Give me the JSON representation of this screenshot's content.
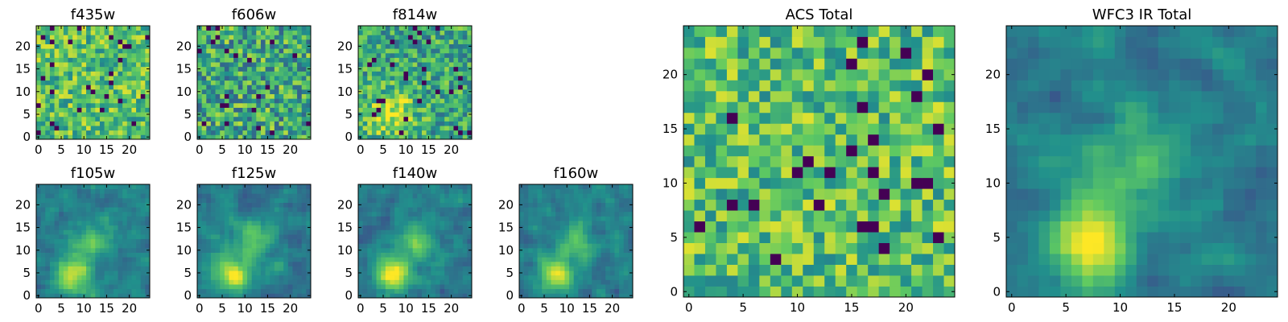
{
  "figure": {
    "description_free": true
  },
  "chart_data": [
    {
      "type": "heatmap",
      "title": "f435w",
      "grid_size": 25,
      "xticks": [
        "0",
        "5",
        "10",
        "15",
        "20"
      ],
      "yticks": [
        "0",
        "5",
        "10",
        "15",
        "20"
      ],
      "xlim": [
        0,
        25
      ],
      "ylim": [
        0,
        25
      ],
      "pattern": "noise_bright",
      "seed": 11
    },
    {
      "type": "heatmap",
      "title": "f606w",
      "grid_size": 25,
      "xticks": [
        "0",
        "5",
        "10",
        "15",
        "20"
      ],
      "yticks": [
        "0",
        "5",
        "10",
        "15",
        "20"
      ],
      "xlim": [
        0,
        25
      ],
      "ylim": [
        0,
        25
      ],
      "pattern": "noise_mid",
      "seed": 23
    },
    {
      "type": "heatmap",
      "title": "f814w",
      "grid_size": 25,
      "xticks": [
        "0",
        "5",
        "10",
        "15",
        "20"
      ],
      "yticks": [
        "0",
        "5",
        "10",
        "15",
        "20"
      ],
      "xlim": [
        0,
        25
      ],
      "ylim": [
        0,
        25
      ],
      "pattern": "noise_blob",
      "seed": 37
    },
    {
      "type": "heatmap",
      "title": "f105w",
      "grid_size": 25,
      "xticks": [
        "0",
        "5",
        "10",
        "15",
        "20"
      ],
      "yticks": [
        "0",
        "5",
        "10",
        "15",
        "20"
      ],
      "xlim": [
        0,
        25
      ],
      "ylim": [
        0,
        25
      ],
      "pattern": "smooth_source",
      "seed": 41
    },
    {
      "type": "heatmap",
      "title": "f125w",
      "grid_size": 25,
      "xticks": [
        "0",
        "5",
        "10",
        "15",
        "20"
      ],
      "yticks": [
        "0",
        "5",
        "10",
        "15",
        "20"
      ],
      "xlim": [
        0,
        25
      ],
      "ylim": [
        0,
        25
      ],
      "pattern": "smooth_source",
      "seed": 53
    },
    {
      "type": "heatmap",
      "title": "f140w",
      "grid_size": 25,
      "xticks": [
        "0",
        "5",
        "10",
        "15",
        "20"
      ],
      "yticks": [
        "0",
        "5",
        "10",
        "15",
        "20"
      ],
      "xlim": [
        0,
        25
      ],
      "ylim": [
        0,
        25
      ],
      "pattern": "smooth_source",
      "seed": 67
    },
    {
      "type": "heatmap",
      "title": "f160w",
      "grid_size": 25,
      "xticks": [
        "0",
        "5",
        "10",
        "15",
        "20"
      ],
      "yticks": [
        "0",
        "5",
        "10",
        "15",
        "20"
      ],
      "xlim": [
        0,
        25
      ],
      "ylim": [
        0,
        25
      ],
      "pattern": "smooth_source",
      "seed": 79
    },
    {
      "type": "heatmap",
      "title": "ACS Total",
      "grid_size": 25,
      "xticks": [
        "0",
        "5",
        "10",
        "15",
        "20"
      ],
      "yticks": [
        "0",
        "5",
        "10",
        "15",
        "20"
      ],
      "xlim": [
        0,
        25
      ],
      "ylim": [
        0,
        25
      ],
      "pattern": "noise_bright",
      "seed": 97
    },
    {
      "type": "heatmap",
      "title": "WFC3 IR Total",
      "grid_size": 25,
      "xticks": [
        "0",
        "5",
        "10",
        "15",
        "20"
      ],
      "yticks": [
        "0",
        "5",
        "10",
        "15",
        "20"
      ],
      "xlim": [
        0,
        25
      ],
      "ylim": [
        0,
        25
      ],
      "pattern": "smooth_source",
      "seed": 101
    }
  ],
  "colormap": [
    "#440154",
    "#3b528b",
    "#21918c",
    "#5ec962",
    "#fde725"
  ]
}
